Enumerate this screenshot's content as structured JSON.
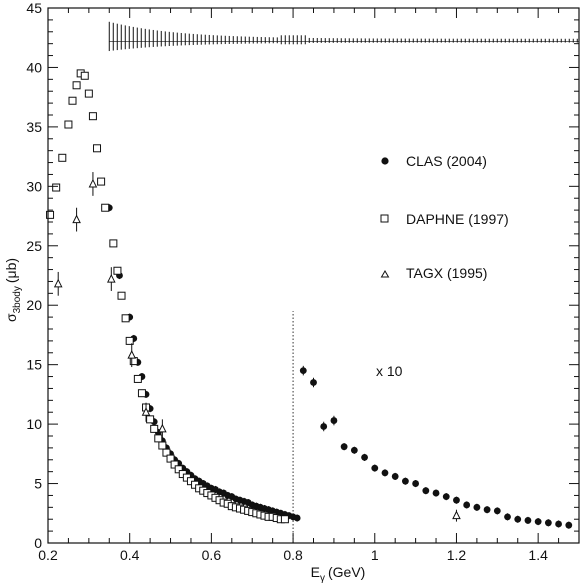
{
  "chart_data": {
    "type": "scatter",
    "xlabel": "E",
    "xlabel_sub": "γ",
    "xlabel_unit": "(GeV)",
    "ylabel": "σ",
    "ylabel_sub": "3body",
    "ylabel_unit": "(μb)",
    "xlim": [
      0.2,
      1.5
    ],
    "ylim": [
      0,
      45
    ],
    "x_ticks": [
      0.2,
      0.4,
      0.6,
      0.8,
      1.0,
      1.2,
      1.4
    ],
    "x_tick_labels": [
      "0.2",
      "0.4",
      "0.6",
      "0.8",
      "1",
      "1.2",
      "1.4"
    ],
    "y_ticks": [
      0,
      5,
      10,
      15,
      20,
      25,
      30,
      35,
      40,
      45
    ],
    "y_tick_labels": [
      "0",
      "5",
      "10",
      "15",
      "20",
      "25",
      "30",
      "35",
      "40",
      "45"
    ],
    "legend_position": "right",
    "annotation": "x 10",
    "divider_x": 0.8,
    "systematic_band": {
      "x_start": 0.35,
      "x_end": 1.5,
      "y_center": 42.2
    },
    "series": [
      {
        "name": "CLAS (2004)",
        "marker": "filled-circle",
        "x": [
          0.35,
          0.375,
          0.4,
          0.41,
          0.42,
          0.43,
          0.44,
          0.45,
          0.46,
          0.47,
          0.48,
          0.49,
          0.5,
          0.51,
          0.52,
          0.53,
          0.54,
          0.55,
          0.56,
          0.57,
          0.58,
          0.59,
          0.6,
          0.61,
          0.62,
          0.63,
          0.64,
          0.65,
          0.66,
          0.67,
          0.68,
          0.69,
          0.7,
          0.71,
          0.72,
          0.73,
          0.74,
          0.75,
          0.76,
          0.77,
          0.78,
          0.79,
          0.8,
          0.81,
          0.825,
          0.85,
          0.875,
          0.9,
          0.925,
          0.95,
          0.975,
          1.0,
          1.025,
          1.05,
          1.075,
          1.1,
          1.125,
          1.15,
          1.175,
          1.2,
          1.225,
          1.25,
          1.275,
          1.3,
          1.325,
          1.35,
          1.375,
          1.4,
          1.425,
          1.45,
          1.475
        ],
        "y": [
          28.2,
          22.5,
          19.0,
          17.2,
          15.2,
          14.0,
          12.5,
          11.3,
          10.2,
          9.3,
          8.6,
          8.0,
          7.5,
          7.0,
          6.7,
          6.3,
          6.0,
          5.7,
          5.4,
          5.2,
          5.0,
          4.8,
          4.6,
          4.5,
          4.3,
          4.2,
          4.0,
          3.9,
          3.7,
          3.6,
          3.5,
          3.4,
          3.2,
          3.1,
          3.0,
          2.9,
          2.8,
          2.7,
          2.6,
          2.5,
          2.4,
          2.3,
          2.2,
          2.1,
          14.5,
          13.5,
          9.8,
          10.3,
          8.1,
          7.8,
          7.2,
          6.3,
          5.9,
          5.6,
          5.2,
          5.0,
          4.4,
          4.2,
          3.9,
          3.6,
          3.2,
          3.0,
          2.8,
          2.7,
          2.2,
          2.0,
          1.9,
          1.8,
          1.7,
          1.6,
          1.5
        ],
        "error": [
          0.3,
          0.3,
          0.3,
          0.3,
          0.3,
          0.3,
          0.3,
          0.3,
          0.3,
          0.3,
          0.3,
          0.3,
          0.3,
          0.3,
          0.3,
          0.3,
          0.3,
          0.3,
          0.3,
          0.3,
          0.3,
          0.3,
          0.3,
          0.3,
          0.3,
          0.3,
          0.3,
          0.3,
          0.3,
          0.3,
          0.3,
          0.3,
          0.3,
          0.3,
          0.3,
          0.3,
          0.3,
          0.3,
          0.3,
          0.3,
          0.3,
          0.3,
          0.3,
          0.3,
          0.4,
          0.4,
          0.4,
          0.4,
          0.3,
          0.3,
          0.3,
          0.3,
          0.3,
          0.3,
          0.3,
          0.3,
          0.3,
          0.3,
          0.3,
          0.3,
          0.3,
          0.3,
          0.3,
          0.3,
          0.3,
          0.3,
          0.3,
          0.3,
          0.3,
          0.3,
          0.3
        ]
      },
      {
        "name": "DAPHNE (1997)",
        "marker": "open-square",
        "x": [
          0.205,
          0.22,
          0.235,
          0.25,
          0.26,
          0.27,
          0.28,
          0.29,
          0.3,
          0.31,
          0.32,
          0.33,
          0.34,
          0.36,
          0.37,
          0.38,
          0.39,
          0.4,
          0.41,
          0.42,
          0.43,
          0.44,
          0.45,
          0.46,
          0.47,
          0.48,
          0.49,
          0.5,
          0.51,
          0.52,
          0.53,
          0.54,
          0.55,
          0.56,
          0.57,
          0.58,
          0.59,
          0.6,
          0.61,
          0.62,
          0.63,
          0.64,
          0.65,
          0.66,
          0.67,
          0.68,
          0.69,
          0.7,
          0.71,
          0.72,
          0.73,
          0.74,
          0.75,
          0.76,
          0.77,
          0.78
        ],
        "y": [
          27.6,
          29.9,
          32.4,
          35.2,
          37.2,
          38.5,
          39.5,
          39.3,
          37.8,
          35.9,
          33.2,
          30.4,
          28.2,
          25.2,
          22.9,
          20.8,
          18.9,
          17.0,
          15.3,
          13.8,
          12.6,
          11.4,
          10.4,
          9.6,
          8.8,
          8.2,
          7.6,
          7.1,
          6.6,
          6.2,
          5.8,
          5.5,
          5.2,
          4.9,
          4.6,
          4.4,
          4.2,
          4.0,
          3.8,
          3.6,
          3.4,
          3.3,
          3.1,
          3.0,
          2.9,
          2.8,
          2.7,
          2.6,
          2.5,
          2.4,
          2.3,
          2.2,
          2.2,
          2.1,
          2.0,
          2.0
        ]
      },
      {
        "name": "TAGX (1995)",
        "marker": "open-triangle",
        "x": [
          0.225,
          0.27,
          0.31,
          0.355,
          0.405,
          0.44,
          0.48,
          1.2
        ],
        "y": [
          21.8,
          27.2,
          30.2,
          22.2,
          15.8,
          11.0,
          9.6,
          2.3
        ],
        "error": [
          1.0,
          1.0,
          1.0,
          1.0,
          1.0,
          0.8,
          0.8,
          0.5
        ]
      }
    ]
  }
}
